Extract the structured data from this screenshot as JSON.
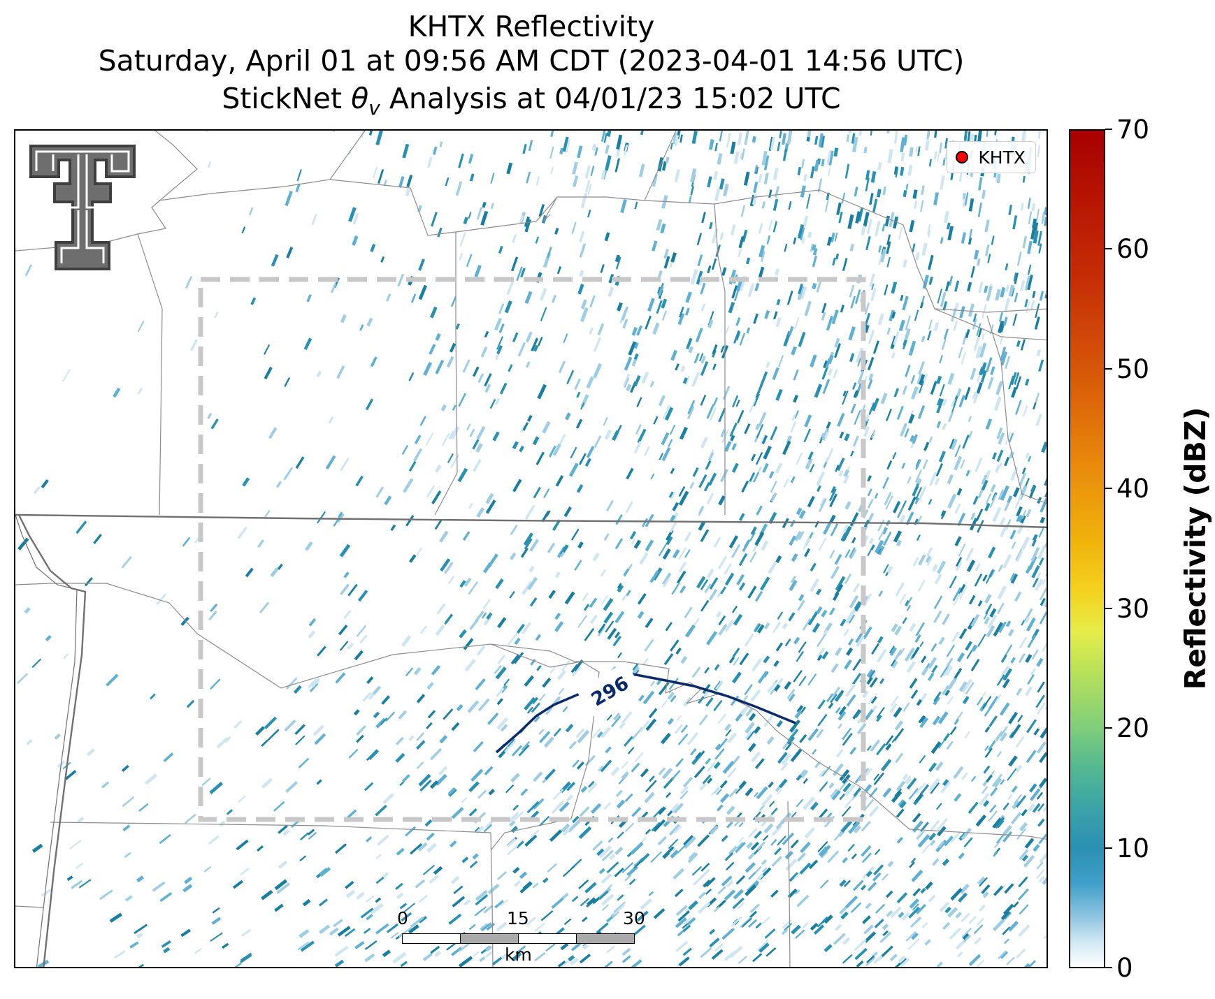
{
  "title": {
    "line1": "KHTX Reflectivity",
    "line2": "Saturday, April 01 at 09:56 AM CDT (2023-04-01 14:56 UTC)",
    "line3_prefix": "StickNet ",
    "line3_symbol": "θ",
    "line3_subscript": "v",
    "line3_suffix": " Analysis at 04/01/23 15:02 UTC"
  },
  "legend": {
    "label": "KHTX",
    "marker_color": "#ff0000"
  },
  "contour": {
    "label": "296",
    "color": "#0a2a6e"
  },
  "scalebar": {
    "labels": [
      "0",
      "15",
      "30"
    ],
    "unit": "km"
  },
  "colorbar": {
    "label": "Reflectivity (dBZ)",
    "ticks": [
      "0",
      "10",
      "20",
      "30",
      "40",
      "50",
      "60",
      "70"
    ],
    "min": 0,
    "max": 70
  },
  "colors": {
    "light_echo": "#9fcde3",
    "mid_echo": "#2a90b2",
    "dark_echo": "#1a7ea0",
    "boundary_line": "#808080",
    "domain_box": "#c8c8c8"
  }
}
